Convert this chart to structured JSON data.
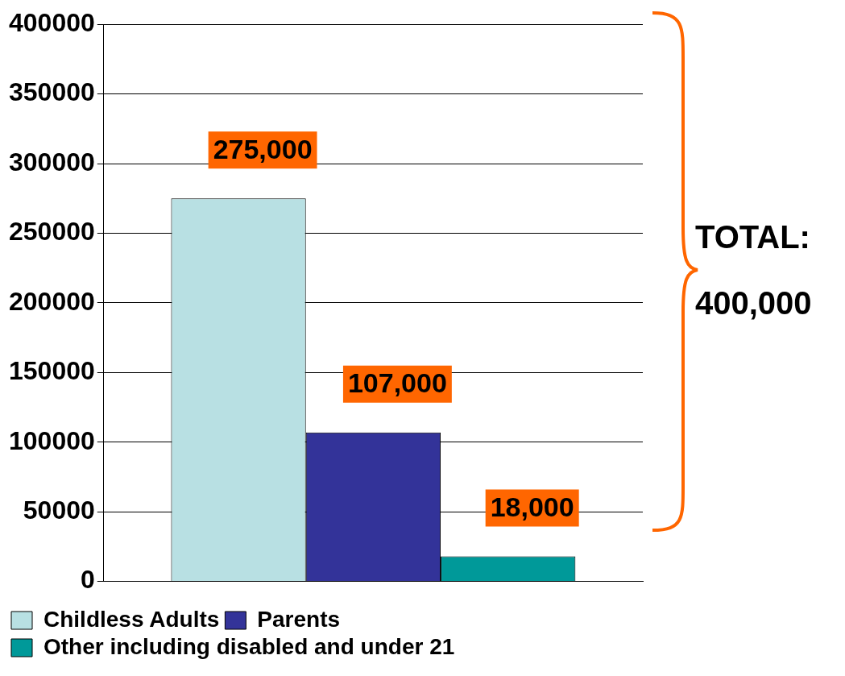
{
  "chart_data": {
    "type": "bar",
    "categories": [
      null
    ],
    "series": [
      {
        "name": "Childless Adults",
        "color": "#b8e0e3",
        "values": [
          275000
        ],
        "value_labels": [
          "275,000"
        ]
      },
      {
        "name": "Parents",
        "color": "#333399",
        "values": [
          107000
        ],
        "value_labels": [
          "107,000"
        ]
      },
      {
        "name": "Other including disabled and under 21",
        "color": "#009999",
        "values": [
          18000
        ],
        "value_labels": [
          "18,000"
        ]
      }
    ],
    "ylim": [
      0,
      400000
    ],
    "yticks": [
      0,
      50000,
      100000,
      150000,
      200000,
      250000,
      300000,
      350000,
      400000
    ],
    "grid": "y",
    "legend": "bottom",
    "annotations": [
      "TOTAL: 400,000"
    ]
  }
}
